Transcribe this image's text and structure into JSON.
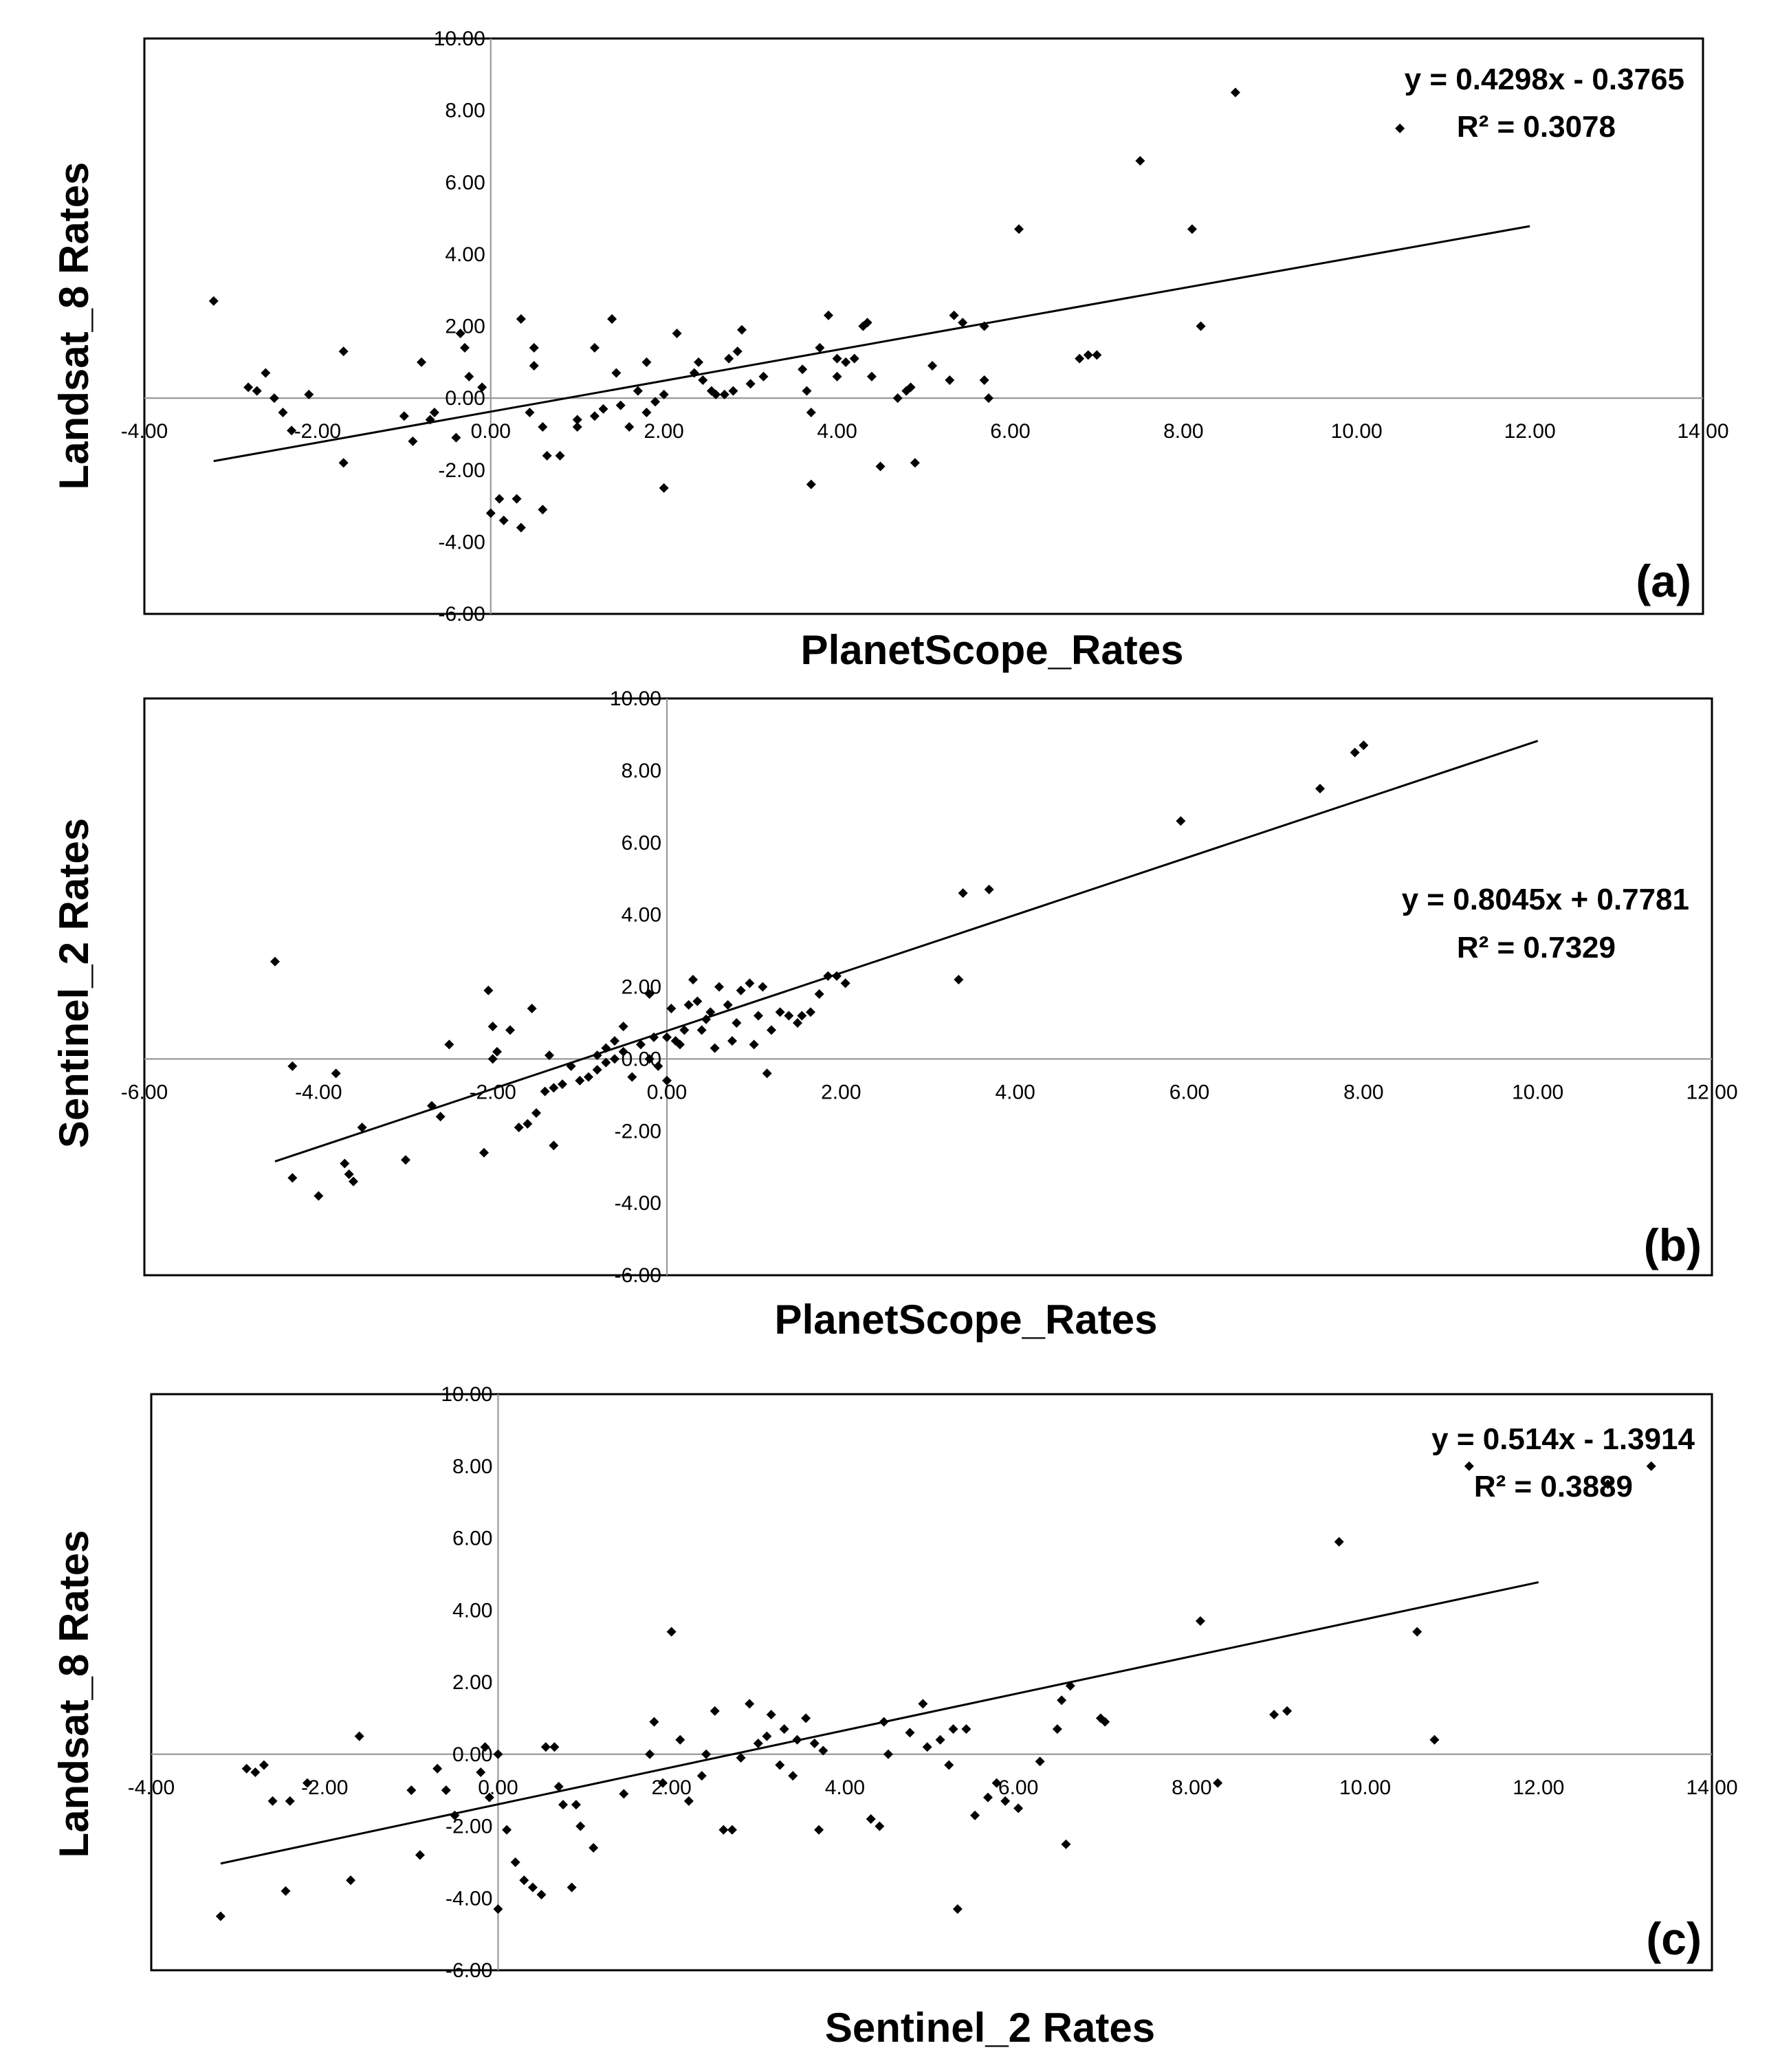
{
  "chart_data": [
    {
      "type": "scatter",
      "id": "a",
      "panel_label": "(a)",
      "xlabel": "PlanetScope_Rates",
      "ylabel": "Landsat_8 Rates",
      "xlim": [
        -4,
        14
      ],
      "ylim": [
        -6,
        10
      ],
      "x_ticks": [
        "-4.00",
        "-2.00",
        "0.00",
        "2.00",
        "4.00",
        "6.00",
        "8.00",
        "10.00",
        "12.00",
        "14.00"
      ],
      "y_ticks": [
        "10.00",
        "8.00",
        "6.00",
        "4.00",
        "2.00",
        "0.00",
        "-2.00",
        "-4.00",
        "-6.00"
      ],
      "equation": "y = 0.4298x - 0.3765",
      "r_squared": "R² = 0.3078",
      "trendline": {
        "slope": 0.4298,
        "intercept": -0.3765,
        "x_range": [
          -3.2,
          12.0
        ]
      },
      "legend_position": "top-right",
      "points": [
        [
          -3.2,
          2.7
        ],
        [
          -2.8,
          0.3
        ],
        [
          -2.7,
          0.2
        ],
        [
          -2.6,
          0.7
        ],
        [
          -2.5,
          0.0
        ],
        [
          -2.4,
          -0.4
        ],
        [
          -2.3,
          -0.9
        ],
        [
          -2.1,
          0.1
        ],
        [
          -1.7,
          1.3
        ],
        [
          -1.7,
          -1.8
        ],
        [
          -1.0,
          -0.5
        ],
        [
          -0.9,
          -1.2
        ],
        [
          -0.8,
          1.0
        ],
        [
          -0.7,
          -0.6
        ],
        [
          -0.65,
          -0.4
        ],
        [
          -0.4,
          -1.1
        ],
        [
          -0.35,
          1.8
        ],
        [
          -0.3,
          1.4
        ],
        [
          -0.25,
          0.6
        ],
        [
          -0.1,
          0.3
        ],
        [
          0.0,
          -3.2
        ],
        [
          0.1,
          -2.8
        ],
        [
          0.15,
          -3.4
        ],
        [
          0.3,
          -2.8
        ],
        [
          0.35,
          2.2
        ],
        [
          0.35,
          -3.6
        ],
        [
          0.45,
          -0.4
        ],
        [
          0.5,
          1.4
        ],
        [
          0.5,
          0.9
        ],
        [
          0.6,
          -0.8
        ],
        [
          0.6,
          -3.1
        ],
        [
          0.65,
          -1.6
        ],
        [
          0.8,
          -1.6
        ],
        [
          1.0,
          -0.6
        ],
        [
          1.0,
          -0.8
        ],
        [
          1.2,
          1.4
        ],
        [
          1.2,
          -0.5
        ],
        [
          1.3,
          -0.3
        ],
        [
          1.4,
          2.2
        ],
        [
          1.45,
          0.7
        ],
        [
          1.5,
          -0.2
        ],
        [
          1.6,
          -0.8
        ],
        [
          1.7,
          0.2
        ],
        [
          1.8,
          -0.4
        ],
        [
          1.8,
          1.0
        ],
        [
          1.9,
          -0.1
        ],
        [
          2.0,
          0.1
        ],
        [
          2.0,
          -2.5
        ],
        [
          2.15,
          1.8
        ],
        [
          2.35,
          0.7
        ],
        [
          2.4,
          1.0
        ],
        [
          2.45,
          0.5
        ],
        [
          2.55,
          0.2
        ],
        [
          2.6,
          0.1
        ],
        [
          2.7,
          0.1
        ],
        [
          2.75,
          1.1
        ],
        [
          2.8,
          0.2
        ],
        [
          2.85,
          1.3
        ],
        [
          2.9,
          1.9
        ],
        [
          3.0,
          0.4
        ],
        [
          3.15,
          0.6
        ],
        [
          3.6,
          0.8
        ],
        [
          3.65,
          0.2
        ],
        [
          3.7,
          -0.4
        ],
        [
          3.7,
          -2.4
        ],
        [
          3.8,
          1.4
        ],
        [
          3.9,
          2.3
        ],
        [
          4.0,
          1.1
        ],
        [
          4.0,
          0.6
        ],
        [
          4.1,
          1.0
        ],
        [
          4.2,
          1.1
        ],
        [
          4.3,
          2.0
        ],
        [
          4.35,
          2.1
        ],
        [
          4.4,
          0.6
        ],
        [
          4.5,
          -1.9
        ],
        [
          4.7,
          0.0
        ],
        [
          4.8,
          0.2
        ],
        [
          4.85,
          0.3
        ],
        [
          4.9,
          -1.8
        ],
        [
          5.1,
          0.9
        ],
        [
          5.3,
          0.5
        ],
        [
          5.35,
          2.3
        ],
        [
          5.45,
          2.1
        ],
        [
          5.7,
          2.0
        ],
        [
          5.7,
          0.5
        ],
        [
          5.75,
          0.0
        ],
        [
          6.1,
          4.7
        ],
        [
          6.8,
          1.1
        ],
        [
          6.9,
          1.2
        ],
        [
          7.0,
          1.2
        ],
        [
          7.5,
          6.6
        ],
        [
          8.1,
          4.7
        ],
        [
          8.2,
          2.0
        ],
        [
          8.6,
          8.5
        ],
        [
          10.5,
          7.5
        ]
      ]
    },
    {
      "type": "scatter",
      "id": "b",
      "panel_label": "(b)",
      "xlabel": "PlanetScope_Rates",
      "ylabel": "Sentinel_2 Rates",
      "xlim": [
        -6,
        12
      ],
      "ylim": [
        -6,
        10
      ],
      "x_ticks": [
        "-6.00",
        "-4.00",
        "-2.00",
        "0.00",
        "2.00",
        "4.00",
        "6.00",
        "8.00",
        "10.00",
        "12.00"
      ],
      "y_ticks": [
        "10.00",
        "8.00",
        "6.00",
        "4.00",
        "2.00",
        "0.00",
        "-2.00",
        "-4.00",
        "-6.00"
      ],
      "equation": "y = 0.8045x + 0.7781",
      "r_squared": "R² = 0.7329",
      "trendline": {
        "slope": 0.8045,
        "intercept": 0.7781,
        "x_range": [
          -4.5,
          10.0
        ]
      },
      "legend_position": "right",
      "points": [
        [
          -4.5,
          2.7
        ],
        [
          -4.3,
          -0.2
        ],
        [
          -4.3,
          -3.3
        ],
        [
          -4.0,
          -3.8
        ],
        [
          -3.8,
          -0.4
        ],
        [
          -3.7,
          -2.9
        ],
        [
          -3.65,
          -3.2
        ],
        [
          -3.6,
          -3.4
        ],
        [
          -3.5,
          -1.9
        ],
        [
          -3.0,
          -2.8
        ],
        [
          -2.7,
          -1.3
        ],
        [
          -2.6,
          -1.6
        ],
        [
          -2.5,
          0.4
        ],
        [
          -2.1,
          -2.6
        ],
        [
          -2.05,
          1.9
        ],
        [
          -2.0,
          0.9
        ],
        [
          -2.0,
          0.0
        ],
        [
          -1.95,
          0.2
        ],
        [
          -1.8,
          0.8
        ],
        [
          -1.7,
          -1.9
        ],
        [
          -1.6,
          -1.8
        ],
        [
          -1.55,
          1.4
        ],
        [
          -1.5,
          -1.5
        ],
        [
          -1.4,
          -0.9
        ],
        [
          -1.35,
          0.1
        ],
        [
          -1.3,
          -2.4
        ],
        [
          -1.3,
          -0.8
        ],
        [
          -1.2,
          -0.7
        ],
        [
          -1.1,
          -0.2
        ],
        [
          -1.0,
          -0.6
        ],
        [
          -0.9,
          -0.5
        ],
        [
          -0.8,
          -0.3
        ],
        [
          -0.8,
          0.1
        ],
        [
          -0.7,
          -0.1
        ],
        [
          -0.7,
          0.3
        ],
        [
          -0.6,
          0.5
        ],
        [
          -0.6,
          0.0
        ],
        [
          -0.5,
          0.9
        ],
        [
          -0.5,
          0.2
        ],
        [
          -0.4,
          -0.5
        ],
        [
          -0.3,
          0.4
        ],
        [
          -0.2,
          0.0
        ],
        [
          -0.2,
          1.8
        ],
        [
          -0.15,
          0.6
        ],
        [
          -0.1,
          -0.2
        ],
        [
          0.0,
          0.6
        ],
        [
          0.0,
          -0.6
        ],
        [
          0.05,
          1.4
        ],
        [
          0.1,
          0.5
        ],
        [
          0.15,
          0.4
        ],
        [
          0.2,
          0.8
        ],
        [
          0.25,
          1.5
        ],
        [
          0.3,
          2.2
        ],
        [
          0.35,
          1.6
        ],
        [
          0.4,
          0.8
        ],
        [
          0.45,
          1.1
        ],
        [
          0.5,
          1.3
        ],
        [
          0.55,
          0.3
        ],
        [
          0.6,
          2.0
        ],
        [
          0.7,
          1.5
        ],
        [
          0.75,
          0.5
        ],
        [
          0.8,
          1.0
        ],
        [
          0.85,
          1.9
        ],
        [
          0.95,
          2.1
        ],
        [
          1.0,
          0.4
        ],
        [
          1.05,
          1.2
        ],
        [
          1.1,
          2.0
        ],
        [
          1.15,
          -0.4
        ],
        [
          1.2,
          0.8
        ],
        [
          1.3,
          1.3
        ],
        [
          1.4,
          1.2
        ],
        [
          1.5,
          1.0
        ],
        [
          1.55,
          1.2
        ],
        [
          1.65,
          1.3
        ],
        [
          1.75,
          1.8
        ],
        [
          1.85,
          2.3
        ],
        [
          1.95,
          2.3
        ],
        [
          2.05,
          2.1
        ],
        [
          3.35,
          2.2
        ],
        [
          3.4,
          4.6
        ],
        [
          3.7,
          4.7
        ],
        [
          5.9,
          6.6
        ],
        [
          7.5,
          7.5
        ],
        [
          7.9,
          8.5
        ],
        [
          8.0,
          8.7
        ]
      ]
    },
    {
      "type": "scatter",
      "id": "c",
      "panel_label": "(c)",
      "xlabel": "Sentinel_2 Rates",
      "ylabel": "Landsat_8 Rates",
      "xlim": [
        -4,
        14
      ],
      "ylim": [
        -6,
        10
      ],
      "x_ticks": [
        "-4.00",
        "-2.00",
        "0.00",
        "2.00",
        "4.00",
        "6.00",
        "8.00",
        "10.00",
        "12.00",
        "14.00"
      ],
      "y_ticks": [
        "10.00",
        "8.00",
        "6.00",
        "4.00",
        "2.00",
        "0.00",
        "-2.00",
        "-4.00",
        "-6.00"
      ],
      "equation": "y = 0.514x - 1.3914",
      "r_squared": "R² = 0.3889",
      "trendline": {
        "slope": 0.514,
        "intercept": -1.3914,
        "x_range": [
          -3.2,
          12.0
        ]
      },
      "legend_position": "top-right",
      "points": [
        [
          -3.2,
          -4.5
        ],
        [
          -2.9,
          -0.4
        ],
        [
          -2.8,
          -0.5
        ],
        [
          -2.7,
          -0.3
        ],
        [
          -2.6,
          -1.3
        ],
        [
          -2.45,
          -3.8
        ],
        [
          -2.4,
          -1.3
        ],
        [
          -2.2,
          -0.8
        ],
        [
          -1.7,
          -3.5
        ],
        [
          -1.6,
          0.5
        ],
        [
          -1.0,
          -1.0
        ],
        [
          -0.9,
          -2.8
        ],
        [
          -0.7,
          -0.4
        ],
        [
          -0.6,
          -1.0
        ],
        [
          -0.5,
          -1.7
        ],
        [
          -0.2,
          -0.5
        ],
        [
          -0.15,
          0.2
        ],
        [
          -0.1,
          -1.2
        ],
        [
          0.1,
          -2.1
        ],
        [
          0.0,
          0.0
        ],
        [
          0.0,
          -4.3
        ],
        [
          0.2,
          -3.0
        ],
        [
          0.3,
          -3.5
        ],
        [
          0.4,
          -3.7
        ],
        [
          0.5,
          -3.9
        ],
        [
          0.55,
          0.2
        ],
        [
          0.65,
          0.2
        ],
        [
          0.7,
          -0.9
        ],
        [
          0.75,
          -1.4
        ],
        [
          0.85,
          -3.7
        ],
        [
          0.9,
          -1.4
        ],
        [
          0.95,
          -2.0
        ],
        [
          1.1,
          -2.6
        ],
        [
          1.45,
          -1.1
        ],
        [
          1.75,
          0.0
        ],
        [
          1.8,
          0.9
        ],
        [
          1.9,
          -0.8
        ],
        [
          2.0,
          3.4
        ],
        [
          2.1,
          0.4
        ],
        [
          2.2,
          -1.3
        ],
        [
          2.35,
          -0.6
        ],
        [
          2.4,
          0.0
        ],
        [
          2.5,
          1.2
        ],
        [
          2.6,
          -2.1
        ],
        [
          2.7,
          -2.1
        ],
        [
          2.8,
          -0.1
        ],
        [
          2.9,
          1.4
        ],
        [
          3.0,
          0.3
        ],
        [
          3.1,
          0.5
        ],
        [
          3.15,
          1.1
        ],
        [
          3.25,
          -0.3
        ],
        [
          3.3,
          0.7
        ],
        [
          3.4,
          -0.6
        ],
        [
          3.45,
          0.4
        ],
        [
          3.55,
          1.0
        ],
        [
          3.65,
          0.3
        ],
        [
          3.7,
          -2.1
        ],
        [
          3.75,
          0.1
        ],
        [
          4.3,
          -1.8
        ],
        [
          4.4,
          -2.0
        ],
        [
          4.45,
          0.9
        ],
        [
          4.5,
          0.0
        ],
        [
          4.75,
          0.6
        ],
        [
          4.9,
          1.4
        ],
        [
          4.95,
          0.2
        ],
        [
          5.1,
          0.4
        ],
        [
          5.2,
          -0.3
        ],
        [
          5.25,
          0.7
        ],
        [
          5.3,
          -4.3
        ],
        [
          5.4,
          0.7
        ],
        [
          5.5,
          -1.7
        ],
        [
          5.65,
          -1.2
        ],
        [
          5.75,
          -0.8
        ],
        [
          5.85,
          -1.3
        ],
        [
          6.0,
          -1.5
        ],
        [
          6.25,
          -0.2
        ],
        [
          6.45,
          0.7
        ],
        [
          6.55,
          -2.5
        ],
        [
          6.5,
          1.5
        ],
        [
          6.6,
          1.9
        ],
        [
          6.95,
          1.0
        ],
        [
          7.0,
          0.9
        ],
        [
          8.1,
          3.7
        ],
        [
          8.3,
          -0.8
        ],
        [
          8.95,
          1.1
        ],
        [
          9.1,
          1.2
        ],
        [
          9.7,
          5.9
        ],
        [
          10.6,
          3.4
        ],
        [
          10.8,
          0.4
        ],
        [
          11.2,
          8.0
        ],
        [
          12.8,
          7.5
        ],
        [
          13.3,
          8.0
        ]
      ]
    }
  ]
}
